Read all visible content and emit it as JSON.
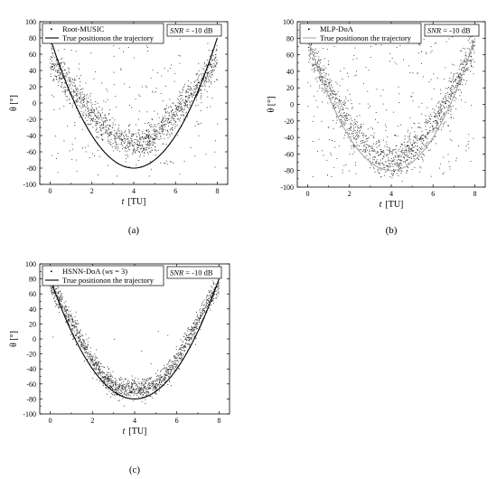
{
  "chart_data": [
    {
      "type": "scatter",
      "panel_label": "(a)",
      "xlabel_italic": "t",
      "xlabel_unit": "[TU]",
      "ylabel": "θ [°]",
      "xlim": [
        -0.5,
        8.5
      ],
      "ylim": [
        -100,
        100
      ],
      "xticks": [
        0,
        2,
        4,
        6,
        8
      ],
      "yticks": [
        -100,
        -80,
        -60,
        -40,
        -20,
        0,
        20,
        40,
        60,
        80,
        100
      ],
      "legend": {
        "scatter_label": "Root-MUSIC",
        "line_label": "True positionon the trajectory",
        "placement": "top-left"
      },
      "snr_label_italic": "SNR",
      "snr_label_value": " = -10 dB",
      "true_trajectory": {
        "formula": "10*(t-4)^2 - 80",
        "t_range": [
          0,
          8
        ]
      },
      "estimate_band": {
        "center": [
          [
            0,
            55
          ],
          [
            0.5,
            37
          ],
          [
            1,
            18
          ],
          [
            1.5,
            3
          ],
          [
            2,
            -13
          ],
          [
            2.5,
            -27
          ],
          [
            3,
            -40
          ],
          [
            3.5,
            -48
          ],
          [
            4,
            -52
          ],
          [
            4.5,
            -48
          ],
          [
            5,
            -40
          ],
          [
            5.5,
            -27
          ],
          [
            6,
            -13
          ],
          [
            6.5,
            3
          ],
          [
            7,
            18
          ],
          [
            7.5,
            37
          ],
          [
            8,
            55
          ]
        ],
        "spread": 10,
        "outlier_fraction": 0.14
      },
      "line_color": "#000000",
      "point_color": "#222222"
    },
    {
      "type": "scatter",
      "panel_label": "(b)",
      "xlabel_italic": "t",
      "xlabel_unit": "[TU]",
      "ylabel": "θ [°]",
      "xlim": [
        -0.5,
        8.5
      ],
      "ylim": [
        -100,
        100
      ],
      "xticks": [
        0,
        2,
        4,
        6,
        8
      ],
      "yticks": [
        -100,
        -80,
        -60,
        -40,
        -20,
        0,
        20,
        40,
        60,
        80,
        100
      ],
      "legend": {
        "scatter_label": "MLP-DoA",
        "line_label": "True positionon the trajectory",
        "placement": "top-left"
      },
      "snr_label_italic": "SNR",
      "snr_label_value": " = -10 dB",
      "true_trajectory": {
        "formula": "10*(t-4)^2 - 80",
        "t_range": [
          0,
          8
        ]
      },
      "estimate_band": {
        "center": [
          [
            0,
            72
          ],
          [
            0.5,
            45
          ],
          [
            1,
            20
          ],
          [
            1.5,
            -2
          ],
          [
            2,
            -25
          ],
          [
            2.5,
            -42
          ],
          [
            3,
            -56
          ],
          [
            3.5,
            -64
          ],
          [
            4,
            -68
          ],
          [
            4.5,
            -64
          ],
          [
            5,
            -56
          ],
          [
            5.5,
            -42
          ],
          [
            6,
            -25
          ],
          [
            6.5,
            -2
          ],
          [
            7,
            20
          ],
          [
            7.5,
            45
          ],
          [
            8,
            72
          ]
        ],
        "spread": 11,
        "outlier_fraction": 0.18
      },
      "line_color": "#aaaaaa",
      "point_color": "#222222"
    },
    {
      "type": "scatter",
      "panel_label": "(c)",
      "xlabel_italic": "t",
      "xlabel_unit": "[TU]",
      "ylabel": "θ [°]",
      "xlim": [
        -0.5,
        8.5
      ],
      "ylim": [
        -100,
        100
      ],
      "xticks": [
        0,
        2,
        4,
        6,
        8
      ],
      "yticks": [
        -100,
        -80,
        -60,
        -40,
        -20,
        0,
        20,
        40,
        60,
        80,
        100
      ],
      "legend": {
        "scatter_label": "HSNN-DoA (",
        "scatter_label_italic": "ws",
        "scatter_label_suffix": " = 3)",
        "line_label": "True positionon the trajectory",
        "placement": "top-left"
      },
      "snr_label_italic": "SNR",
      "snr_label_value": " = -10 dB",
      "true_trajectory": {
        "formula": "10*(t-4)^2 - 80",
        "t_range": [
          0,
          8
        ]
      },
      "estimate_band": {
        "center": [
          [
            0,
            72
          ],
          [
            0.5,
            50
          ],
          [
            1,
            22
          ],
          [
            1.5,
            -3
          ],
          [
            2,
            -28
          ],
          [
            2.5,
            -50
          ],
          [
            3,
            -62
          ],
          [
            3.5,
            -66
          ],
          [
            4,
            -67
          ],
          [
            4.5,
            -66
          ],
          [
            5,
            -62
          ],
          [
            5.5,
            -50
          ],
          [
            6,
            -28
          ],
          [
            6.5,
            -3
          ],
          [
            7,
            22
          ],
          [
            7.5,
            50
          ],
          [
            8,
            72
          ]
        ],
        "spread": 7,
        "outlier_fraction": 0.01
      },
      "line_color": "#000000",
      "point_color": "#222222"
    }
  ]
}
